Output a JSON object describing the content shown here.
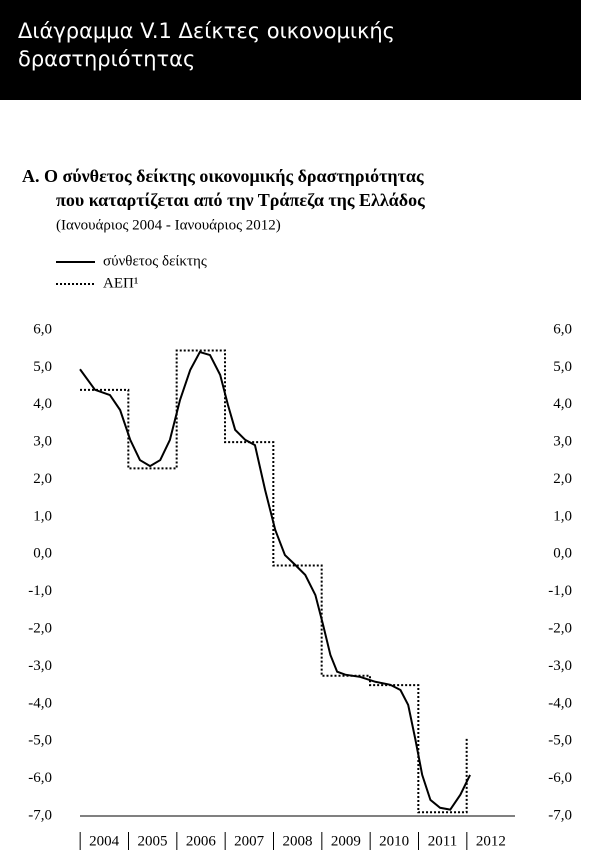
{
  "header": {
    "title_lines": [
      "Διάγραμμα V.1  Δείκτες οικονομικής",
      "δραστηριότητας"
    ]
  },
  "chart_data": {
    "type": "line",
    "title_lines": [
      "Α.  Ο σύνθετος δείκτης οικονομικής δραστηριότητας",
      "που καταρτίζεται από την Τράπεζα της Ελλάδος"
    ],
    "subtitle": "(Ιανουάριος 2004 - Ιανουάριος 2012)",
    "series": [
      {
        "name": "σύνθετος δείκτης",
        "color": "#000000",
        "style": "solid",
        "x": [
          2004.0,
          2004.31,
          2004.62,
          2004.83,
          2005.04,
          2005.24,
          2005.45,
          2005.66,
          2005.86,
          2006.07,
          2006.28,
          2006.48,
          2006.69,
          2006.9,
          2007.06,
          2007.21,
          2007.42,
          2007.62,
          2007.83,
          2008.04,
          2008.24,
          2008.45,
          2008.66,
          2008.87,
          2009.03,
          2009.18,
          2009.32,
          2009.49,
          2009.8,
          2010.11,
          2010.42,
          2010.63,
          2010.79,
          2010.94,
          2011.08,
          2011.25,
          2011.45,
          2011.66,
          2011.87,
          2012.07
        ],
        "values": [
          4.95,
          4.4,
          4.26,
          3.86,
          3.06,
          2.52,
          2.36,
          2.52,
          3.06,
          4.13,
          4.93,
          5.41,
          5.33,
          4.8,
          4.0,
          3.33,
          3.06,
          2.92,
          1.72,
          0.65,
          -0.02,
          -0.28,
          -0.55,
          -1.09,
          -1.89,
          -2.69,
          -3.14,
          -3.22,
          -3.28,
          -3.41,
          -3.49,
          -3.63,
          -4.03,
          -4.96,
          -5.9,
          -6.57,
          -6.78,
          -6.83,
          -6.43,
          -5.9
        ]
      },
      {
        "name": "ΑΕΠ¹",
        "color": "#000000",
        "style": "step-dotted",
        "x": [
          2004,
          2005,
          2006,
          2007,
          2008,
          2009,
          2010,
          2011,
          2012
        ],
        "values": [
          4.4,
          2.3,
          5.45,
          3.0,
          -0.3,
          -3.25,
          -3.5,
          -6.9,
          -4.9
        ]
      }
    ],
    "xlim": [
      2004,
      2013
    ],
    "xticks": [
      {
        "value": 2004.5,
        "label": "2004"
      },
      {
        "value": 2005.5,
        "label": "2005"
      },
      {
        "value": 2006.5,
        "label": "2006"
      },
      {
        "value": 2007.5,
        "label": "2007"
      },
      {
        "value": 2008.5,
        "label": "2008"
      },
      {
        "value": 2009.5,
        "label": "2009"
      },
      {
        "value": 2010.5,
        "label": "2010"
      },
      {
        "value": 2011.5,
        "label": "2011"
      },
      {
        "value": 2012.5,
        "label": "2012"
      }
    ],
    "ylim": [
      -7,
      6
    ],
    "yticks": [
      {
        "value": 6,
        "label": "6,0"
      },
      {
        "value": 5,
        "label": "5,0"
      },
      {
        "value": 4,
        "label": "4,0"
      },
      {
        "value": 3,
        "label": "3,0"
      },
      {
        "value": 2,
        "label": "2,0"
      },
      {
        "value": 1,
        "label": "1,0"
      },
      {
        "value": 0,
        "label": "0,0"
      },
      {
        "value": -1,
        "label": "-1,0"
      },
      {
        "value": -2,
        "label": "-2,0"
      },
      {
        "value": -3,
        "label": "-3,0"
      },
      {
        "value": -4,
        "label": "-4,0"
      },
      {
        "value": -5,
        "label": "-5,0"
      },
      {
        "value": -6,
        "label": "-6,0"
      },
      {
        "value": -7,
        "label": "-7,0"
      }
    ]
  }
}
